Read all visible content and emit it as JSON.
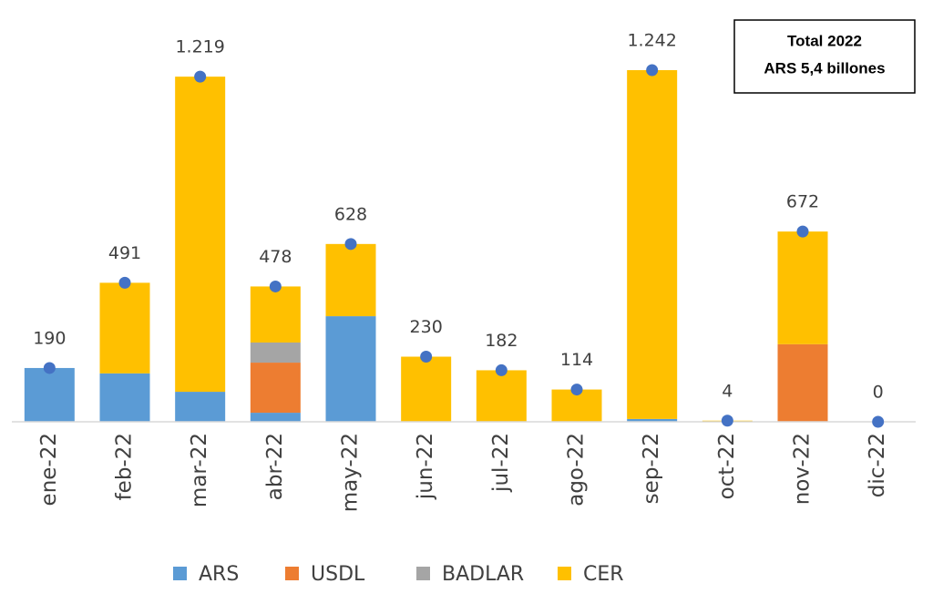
{
  "chart_data": {
    "type": "stacked-bar",
    "categories": [
      "ene-22",
      "feb-22",
      "mar-22",
      "abr-22",
      "may-22",
      "jun-22",
      "jul-22",
      "ago-22",
      "sep-22",
      "oct-22",
      "nov-22",
      "dic-22"
    ],
    "series": [
      {
        "name": "ARS",
        "color": "#5b9bd5",
        "values": [
          190,
          171,
          106,
          32,
          373,
          0,
          0,
          0,
          10,
          0,
          0,
          0
        ]
      },
      {
        "name": "USDL",
        "color": "#ed7d31",
        "values": [
          0,
          0,
          0,
          177,
          0,
          0,
          0,
          0,
          0,
          0,
          274,
          0
        ]
      },
      {
        "name": "BADLAR",
        "color": "#a5a5a5",
        "values": [
          0,
          0,
          0,
          71,
          0,
          0,
          0,
          0,
          0,
          0,
          0,
          0
        ]
      },
      {
        "name": "CER",
        "color": "#ffc000",
        "values": [
          0,
          320,
          1113,
          198,
          255,
          230,
          182,
          114,
          1232,
          4,
          398,
          0
        ]
      }
    ],
    "totals": {
      "color": "#4472c4",
      "values": [
        190,
        491,
        1219,
        478,
        628,
        230,
        182,
        114,
        1242,
        4,
        672,
        0
      ],
      "value_labels": [
        "190",
        "491",
        "1.219",
        "478",
        "628",
        "230",
        "182",
        "114",
        "1.242",
        "4",
        "672",
        "0"
      ]
    },
    "annotations": [
      "Total 2022",
      "ARS 5,4 billones"
    ]
  }
}
